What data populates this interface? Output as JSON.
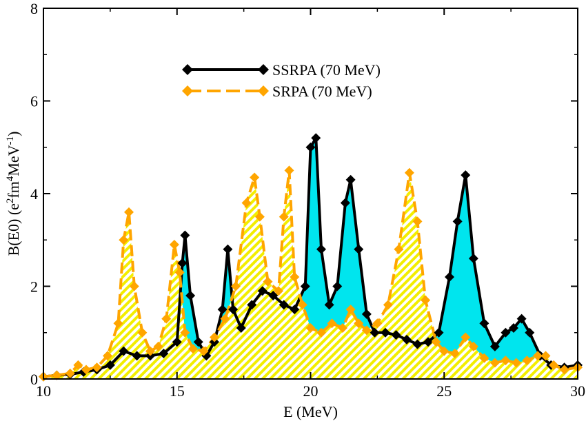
{
  "chart_data": {
    "type": "line",
    "xlabel": "E (MeV)",
    "ylabel": {
      "base": "B(E0) (e",
      "sup1": "2",
      "mid1": "fm",
      "sup2": "4",
      "mid2": "MeV",
      "sup3": "-1",
      "end": ")"
    },
    "xlim": [
      10,
      30
    ],
    "ylim": [
      0,
      8
    ],
    "x_ticks": [
      10,
      15,
      20,
      25,
      30
    ],
    "y_ticks": [
      0,
      2,
      4,
      6,
      8
    ],
    "grid": false,
    "legend_position": "top-center",
    "series": [
      {
        "name": "SSRPA (70 MeV)",
        "color": "#000000",
        "fill": "#00e5ee",
        "line_style": "solid",
        "marker": "diamond",
        "x": [
          10.0,
          10.5,
          11.0,
          11.5,
          12.0,
          12.5,
          13.0,
          13.5,
          14.0,
          14.5,
          15.0,
          15.2,
          15.3,
          15.5,
          15.8,
          16.1,
          16.4,
          16.7,
          16.9,
          17.1,
          17.4,
          17.8,
          18.2,
          18.6,
          19.0,
          19.4,
          19.8,
          20.0,
          20.2,
          20.4,
          20.7,
          21.0,
          21.3,
          21.5,
          21.8,
          22.1,
          22.4,
          22.8,
          23.2,
          23.6,
          24.0,
          24.4,
          24.8,
          25.2,
          25.5,
          25.8,
          26.1,
          26.5,
          26.9,
          27.3,
          27.6,
          27.9,
          28.2,
          28.6,
          29.0,
          29.5,
          30.0
        ],
        "y": [
          0.05,
          0.08,
          0.1,
          0.15,
          0.2,
          0.3,
          0.6,
          0.5,
          0.5,
          0.55,
          0.8,
          2.5,
          3.1,
          1.8,
          0.8,
          0.5,
          0.8,
          1.5,
          2.8,
          1.5,
          1.1,
          1.6,
          1.9,
          1.8,
          1.6,
          1.5,
          2.0,
          5.0,
          5.2,
          2.8,
          1.6,
          2.0,
          3.8,
          4.3,
          2.8,
          1.4,
          1.0,
          1.0,
          0.95,
          0.85,
          0.75,
          0.8,
          1.0,
          2.2,
          3.4,
          4.4,
          2.6,
          1.2,
          0.7,
          1.0,
          1.1,
          1.3,
          1.0,
          0.5,
          0.3,
          0.25,
          0.3
        ]
      },
      {
        "name": "SRPA (70 MeV)",
        "color": "#ffa500",
        "fill": "#f3ee00",
        "line_style": "dashed",
        "marker": "diamond",
        "x": [
          10.0,
          10.5,
          11.0,
          11.3,
          11.6,
          12.0,
          12.4,
          12.8,
          13.0,
          13.2,
          13.4,
          13.7,
          14.0,
          14.3,
          14.6,
          14.9,
          15.1,
          15.3,
          15.6,
          16.0,
          16.4,
          16.8,
          17.2,
          17.6,
          17.9,
          18.1,
          18.4,
          18.8,
          19.0,
          19.2,
          19.4,
          19.7,
          20.0,
          20.4,
          20.8,
          21.2,
          21.5,
          21.8,
          22.1,
          22.5,
          22.9,
          23.3,
          23.7,
          24.0,
          24.3,
          24.7,
          25.0,
          25.4,
          25.8,
          26.1,
          26.5,
          26.9,
          27.3,
          27.7,
          28.1,
          28.5,
          28.8,
          29.1,
          29.5,
          30.0
        ],
        "y": [
          0.05,
          0.08,
          0.12,
          0.3,
          0.2,
          0.25,
          0.5,
          1.2,
          3.0,
          3.6,
          2.0,
          1.0,
          0.6,
          0.7,
          1.3,
          2.9,
          2.3,
          1.0,
          0.65,
          0.6,
          0.9,
          1.3,
          2.0,
          3.8,
          4.35,
          3.5,
          2.1,
          1.9,
          3.5,
          4.5,
          2.2,
          1.6,
          1.1,
          1.0,
          1.2,
          1.1,
          1.5,
          1.2,
          1.05,
          1.2,
          1.6,
          2.8,
          4.45,
          3.4,
          1.7,
          0.8,
          0.6,
          0.55,
          0.9,
          0.7,
          0.45,
          0.35,
          0.4,
          0.35,
          0.4,
          0.5,
          0.5,
          0.3,
          0.2,
          0.25
        ]
      }
    ]
  }
}
